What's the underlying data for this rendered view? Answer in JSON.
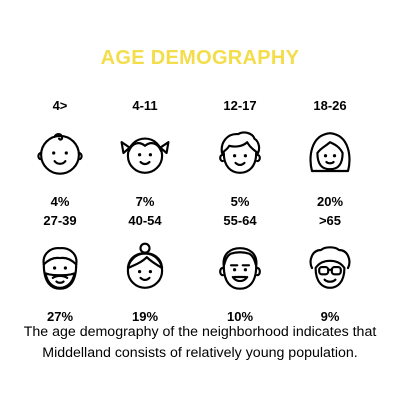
{
  "title": "AGE DEMOGRAPHY",
  "title_color": "#f4dd4a",
  "groups": [
    {
      "range": "4>",
      "percent": "4%",
      "icon": "baby-face-icon"
    },
    {
      "range": "4-11",
      "percent": "7%",
      "icon": "girl-pigtails-face-icon"
    },
    {
      "range": "12-17",
      "percent": "5%",
      "icon": "teen-boy-face-icon"
    },
    {
      "range": "18-26",
      "percent": "20%",
      "icon": "young-woman-face-icon"
    },
    {
      "range": "27-39",
      "percent": "27%",
      "icon": "bearded-man-face-icon"
    },
    {
      "range": "40-54",
      "percent": "19%",
      "icon": "woman-bun-face-icon"
    },
    {
      "range": "55-64",
      "percent": "10%",
      "icon": "older-man-face-icon"
    },
    {
      "range": ">65",
      "percent": "9%",
      "icon": "grandma-glasses-face-icon"
    }
  ],
  "caption_line1": "The age demography of the neighborhood indicates that",
  "caption_line2": "Middelland consists of relatively young population."
}
